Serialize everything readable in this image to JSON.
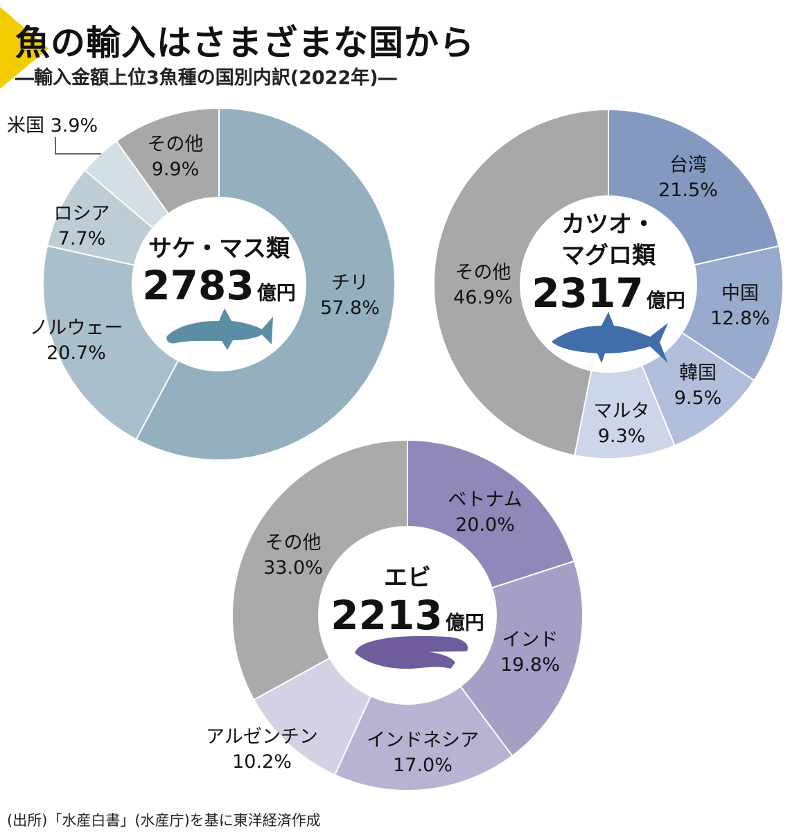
{
  "title": "魚の輸入はさまざまな国から",
  "subtitle": "―輸入金額上位3魚種の国別内訳(2022年)―",
  "source": "(出所)「水産白書」(水産庁)を基に東洋経済作成",
  "accent_color": "#f2cc00",
  "chart_data": [
    {
      "type": "pie",
      "title_lines": [
        "サケ・マス類"
      ],
      "total": "2783",
      "unit": "億円",
      "icon": "salmon-icon",
      "icon_color": "#5b8ea3",
      "slices": [
        {
          "label": "チリ",
          "value": 57.8,
          "color": "#94b0bf"
        },
        {
          "label": "ノルウェー",
          "value": 20.7,
          "color": "#a9bfcb"
        },
        {
          "label": "ロシア",
          "value": 7.7,
          "color": "#bccdd6"
        },
        {
          "label": "米国",
          "value": 3.9,
          "color": "#d4dfe5"
        },
        {
          "label": "その他",
          "value": 9.9,
          "color": "#a8a8a8"
        }
      ]
    },
    {
      "type": "pie",
      "title_lines": [
        "カツオ・",
        "マグロ類"
      ],
      "total": "2317",
      "unit": "億円",
      "icon": "tuna-icon",
      "icon_color": "#3f6ea8",
      "slices": [
        {
          "label": "台湾",
          "value": 21.5,
          "color": "#8399c0"
        },
        {
          "label": "中国",
          "value": 12.8,
          "color": "#98aacd"
        },
        {
          "label": "韓国",
          "value": 9.5,
          "color": "#b1bedb"
        },
        {
          "label": "マルタ",
          "value": 9.3,
          "color": "#cdd5e8"
        },
        {
          "label": "その他",
          "value": 46.9,
          "color": "#a8a8a8"
        }
      ]
    },
    {
      "type": "pie",
      "title_lines": [
        "エビ"
      ],
      "total": "2213",
      "unit": "億円",
      "icon": "shrimp-icon",
      "icon_color": "#6e5c9c",
      "slices": [
        {
          "label": "ベトナム",
          "value": 20.0,
          "color": "#9088b8"
        },
        {
          "label": "インド",
          "value": 19.8,
          "color": "#a59fc6"
        },
        {
          "label": "インドネシア",
          "value": 17.0,
          "color": "#b9b3d3"
        },
        {
          "label": "アルゼンチン",
          "value": 10.2,
          "color": "#d5d1e4"
        },
        {
          "label": "その他",
          "value": 33.0,
          "color": "#aaaaaa"
        }
      ]
    }
  ]
}
